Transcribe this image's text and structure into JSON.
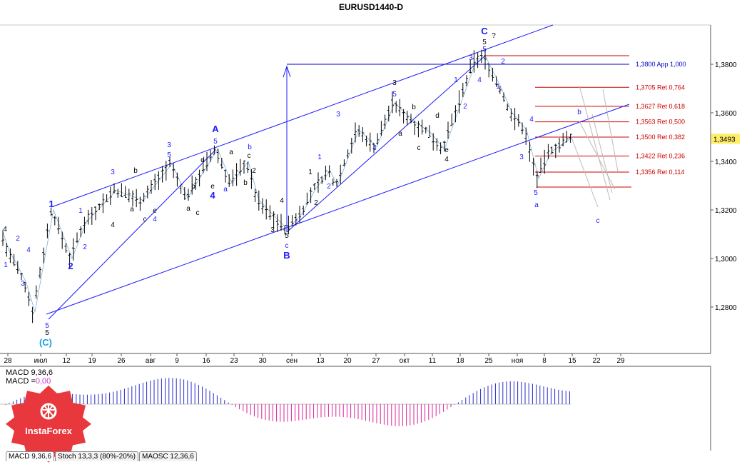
{
  "title": "EURUSD1440-D",
  "current_price": "1,3493",
  "logo_text": "InstaForex",
  "chart_data": {
    "type": "line",
    "symbol": "EURUSD",
    "timeframe": "D1",
    "y_ticks": [
      "1,3800",
      "1,3600",
      "1,3400",
      "1,3200",
      "1,3000",
      "1,2800"
    ],
    "y_tick_values": [
      1.38,
      1.36,
      1.34,
      1.32,
      1.3,
      1.28
    ],
    "x_ticks": [
      "28",
      "июл",
      "12",
      "19",
      "26",
      "авг",
      "9",
      "16",
      "23",
      "30",
      "сен",
      "13",
      "20",
      "27",
      "окт",
      "11",
      "18",
      "25",
      "ноя",
      "8",
      "15",
      "22",
      "29"
    ],
    "fib_levels": [
      {
        "price": 1.38,
        "label": "1,3800 App 1,000",
        "color": "#0000cc"
      },
      {
        "price": 1.3705,
        "label": "1,3705 Ret 0,764",
        "color": "#cc0000"
      },
      {
        "price": 1.3627,
        "label": "1,3627 Ret 0,618",
        "color": "#cc0000"
      },
      {
        "price": 1.3563,
        "label": "1,3563 Ret 0,500",
        "color": "#cc0000"
      },
      {
        "price": 1.35,
        "label": "1,3500 Ret 0,382",
        "color": "#cc0000"
      },
      {
        "price": 1.3422,
        "label": "1,3422 Ret 0,236",
        "color": "#cc0000"
      },
      {
        "price": 1.3356,
        "label": "1,3356 Ret 0,114",
        "color": "#cc0000"
      }
    ],
    "zigzag": [
      [
        0,
        1.312
      ],
      [
        10,
        1.303
      ],
      [
        20,
        1.298
      ],
      [
        34,
        1.29
      ],
      [
        46,
        1.278
      ],
      [
        72,
        1.32
      ],
      [
        98,
        1.3
      ],
      [
        118,
        1.315
      ],
      [
        160,
        1.328
      ],
      [
        198,
        1.324
      ],
      [
        238,
        1.339
      ],
      [
        260,
        1.325
      ],
      [
        302,
        1.345
      ],
      [
        322,
        1.331
      ],
      [
        345,
        1.34
      ],
      [
        360,
        1.324
      ],
      [
        400,
        1.312
      ],
      [
        422,
        1.319
      ],
      [
        440,
        1.329
      ],
      [
        460,
        1.336
      ],
      [
        470,
        1.33
      ],
      [
        500,
        1.353
      ],
      [
        525,
        1.346
      ],
      [
        550,
        1.364
      ],
      [
        580,
        1.356
      ],
      [
        600,
        1.352
      ],
      [
        620,
        1.345
      ],
      [
        665,
        1.382
      ],
      [
        678,
        1.383
      ],
      [
        700,
        1.37
      ],
      [
        715,
        1.36
      ],
      [
        735,
        1.353
      ],
      [
        752,
        1.333
      ],
      [
        770,
        1.344
      ],
      [
        800,
        1.35
      ]
    ],
    "wave_labels": [
      {
        "t": "4",
        "x": 7,
        "y": 324,
        "c": "#000"
      },
      {
        "t": "1",
        "x": 8,
        "y": 374,
        "c": "#1a1aff"
      },
      {
        "t": "2",
        "x": 25,
        "y": 337,
        "c": "#1a1aff"
      },
      {
        "t": "3",
        "x": 32,
        "y": 400,
        "c": "#1a1aff"
      },
      {
        "t": "4",
        "x": 40,
        "y": 353,
        "c": "#1a1aff"
      },
      {
        "t": "5",
        "x": 66,
        "y": 459,
        "c": "#1a1aff"
      },
      {
        "t": "5",
        "x": 66,
        "y": 469,
        "c": "#000"
      },
      {
        "t": "(C)",
        "x": 64,
        "y": 484,
        "c": "#1aa0e0"
      },
      {
        "t": "1",
        "x": 72,
        "y": 290,
        "c": "#1a1aff"
      },
      {
        "t": "2",
        "x": 99,
        "y": 377,
        "c": "#1a1aff"
      },
      {
        "t": "1",
        "x": 113,
        "y": 298,
        "c": "#1a1aff"
      },
      {
        "t": "2",
        "x": 119,
        "y": 349,
        "c": "#1a1aff"
      },
      {
        "t": "3",
        "x": 158,
        "y": 244,
        "c": "#1a1aff"
      },
      {
        "t": "4",
        "x": 158,
        "y": 318,
        "c": "#000"
      },
      {
        "t": "b",
        "x": 190,
        "y": 242,
        "c": "#000"
      },
      {
        "t": "a",
        "x": 185,
        "y": 296,
        "c": "#000"
      },
      {
        "t": "c",
        "x": 203,
        "y": 310,
        "c": "#000"
      },
      {
        "t": "e",
        "x": 217,
        "y": 298,
        "c": "#000"
      },
      {
        "t": "4",
        "x": 217,
        "y": 310,
        "c": "#1a1aff"
      },
      {
        "t": "3",
        "x": 237,
        "y": 206,
        "c": "#1a1aff"
      },
      {
        "t": "5",
        "x": 237,
        "y": 220,
        "c": "#1a1aff"
      },
      {
        "t": "A",
        "x": 302,
        "y": 185,
        "c": "#1a1aff"
      },
      {
        "t": "5",
        "x": 302,
        "y": 201,
        "c": "#1a1aff"
      },
      {
        "t": "d",
        "x": 284,
        "y": 227,
        "c": "#000"
      },
      {
        "t": "b",
        "x": 271,
        "y": 264,
        "c": "#000"
      },
      {
        "t": "a",
        "x": 264,
        "y": 295,
        "c": "#000"
      },
      {
        "t": "c",
        "x": 277,
        "y": 301,
        "c": "#000"
      },
      {
        "t": "e",
        "x": 298,
        "y": 264,
        "c": "#000"
      },
      {
        "t": "4",
        "x": 298,
        "y": 278,
        "c": "#1a1aff"
      },
      {
        "t": "a",
        "x": 316,
        "y": 268,
        "c": "#1a1aff"
      },
      {
        "t": "b",
        "x": 350,
        "y": 209,
        "c": "#1a1aff"
      },
      {
        "t": "a",
        "x": 324,
        "y": 216,
        "c": "#000"
      },
      {
        "t": "c",
        "x": 349,
        "y": 221,
        "c": "#000"
      },
      {
        "t": "2",
        "x": 356,
        "y": 242,
        "c": "#000"
      },
      {
        "t": "b",
        "x": 344,
        "y": 259,
        "c": "#000"
      },
      {
        "t": "3",
        "x": 382,
        "y": 325,
        "c": "#000"
      },
      {
        "t": "4",
        "x": 395,
        "y": 284,
        "c": "#000"
      },
      {
        "t": "5",
        "x": 402,
        "y": 333,
        "c": "#000"
      },
      {
        "t": "c",
        "x": 402,
        "y": 347,
        "c": "#1a1aff"
      },
      {
        "t": "B",
        "x": 402,
        "y": 362,
        "c": "#1a1aff"
      },
      {
        "t": "1",
        "x": 435,
        "y": 244,
        "c": "#000"
      },
      {
        "t": "2",
        "x": 443,
        "y": 287,
        "c": "#000"
      },
      {
        "t": "1",
        "x": 448,
        "y": 223,
        "c": "#1a1aff"
      },
      {
        "t": "2",
        "x": 461,
        "y": 264,
        "c": "#1a1aff"
      },
      {
        "t": "3",
        "x": 474,
        "y": 163,
        "c": "#1a1aff"
      },
      {
        "t": "4",
        "x": 525,
        "y": 210,
        "c": "#1a1aff"
      },
      {
        "t": "5",
        "x": 553,
        "y": 135,
        "c": "#1a1aff"
      },
      {
        "t": "3",
        "x": 553,
        "y": 119,
        "c": "#000"
      },
      {
        "t": "b",
        "x": 580,
        "y": 153,
        "c": "#000"
      },
      {
        "t": "a",
        "x": 561,
        "y": 190,
        "c": "#000"
      },
      {
        "t": "c",
        "x": 587,
        "y": 210,
        "c": "#000"
      },
      {
        "t": "d",
        "x": 613,
        "y": 165,
        "c": "#000"
      },
      {
        "t": "e",
        "x": 626,
        "y": 213,
        "c": "#000"
      },
      {
        "t": "4",
        "x": 626,
        "y": 226,
        "c": "#000"
      },
      {
        "t": "1",
        "x": 639,
        "y": 115,
        "c": "#1a1aff"
      },
      {
        "t": "2",
        "x": 652,
        "y": 152,
        "c": "#1a1aff"
      },
      {
        "t": "3",
        "x": 660,
        "y": 84,
        "c": "#1a1aff"
      },
      {
        "t": "4",
        "x": 672,
        "y": 115,
        "c": "#1a1aff"
      },
      {
        "t": "C",
        "x": 679,
        "y": 48,
        "c": "#1a1aff"
      },
      {
        "t": "?",
        "x": 692,
        "y": 53,
        "c": "#000"
      },
      {
        "t": "5",
        "x": 679,
        "y": 62,
        "c": "#000"
      },
      {
        "t": "5",
        "x": 679,
        "y": 72,
        "c": "#1a1aff"
      },
      {
        "t": "2",
        "x": 705,
        "y": 89,
        "c": "#1a1aff"
      },
      {
        "t": "1",
        "x": 698,
        "y": 124,
        "c": "#1a1aff"
      },
      {
        "t": "4",
        "x": 745,
        "y": 170,
        "c": "#1a1aff"
      },
      {
        "t": "3",
        "x": 731,
        "y": 223,
        "c": "#1a1aff"
      },
      {
        "t": "5",
        "x": 751,
        "y": 273,
        "c": "#1a1aff"
      },
      {
        "t": "a",
        "x": 752,
        "y": 290,
        "c": "#1a1aff"
      },
      {
        "t": "b",
        "x": 812,
        "y": 160,
        "c": "#1a1aff"
      },
      {
        "t": "c",
        "x": 838,
        "y": 312,
        "c": "#1a1aff"
      }
    ],
    "indicators": {
      "macd_label": "MACD 9,36,6",
      "macd_value_label": "MACD =",
      "macd_value": "0,00",
      "tabs": [
        "MACD 9,36,6",
        "Stoch 13,3,3 (80%-20%)",
        "MAOSC 12,36,6"
      ]
    }
  },
  "colors": {
    "bull_wave": "#1a1aff",
    "fib": "#cc0000",
    "logo": "#e8383d"
  }
}
